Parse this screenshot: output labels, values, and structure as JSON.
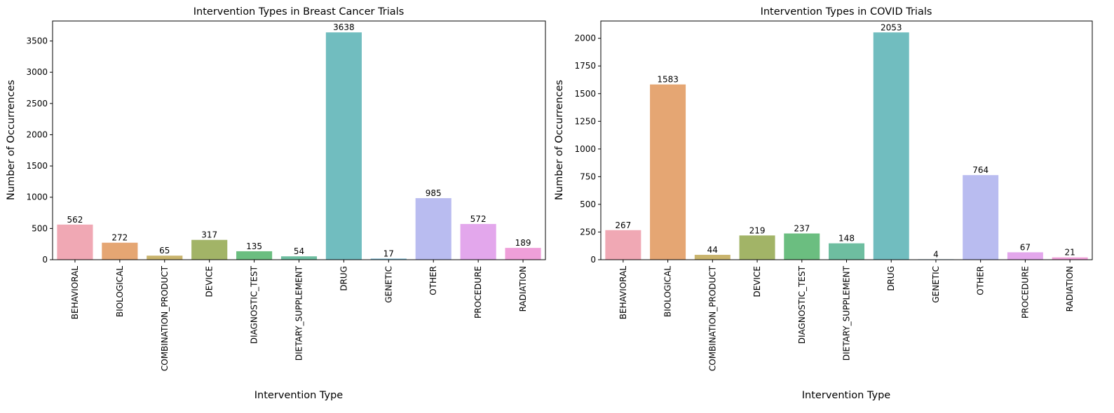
{
  "chart_data": [
    {
      "type": "bar",
      "title": "Intervention Types in Breast Cancer Trials",
      "xlabel": "Intervention Type",
      "ylabel": "Number of Occurrences",
      "ylim": [
        0,
        3820
      ],
      "yticks": [
        0,
        500,
        1000,
        1500,
        2000,
        2500,
        3000,
        3500
      ],
      "categories": [
        "BEHAVIORAL",
        "BIOLOGICAL",
        "COMBINATION_PRODUCT",
        "DEVICE",
        "DIAGNOSTIC_TEST",
        "DIETARY_SUPPLEMENT",
        "DRUG",
        "GENETIC",
        "OTHER",
        "PROCEDURE",
        "RADIATION"
      ],
      "values": [
        562,
        272,
        65,
        317,
        135,
        54,
        3638,
        17,
        985,
        572,
        189
      ],
      "colors": [
        "#f0a8b4",
        "#e5a673",
        "#c9b46d",
        "#a2b467",
        "#6bbe80",
        "#6ebea0",
        "#71bdbf",
        "#74b6d2",
        "#b9bcf0",
        "#e3a7ec",
        "#ef9fd9"
      ],
      "grid": false,
      "legend": "none"
    },
    {
      "type": "bar",
      "title": "Intervention Types in COVID Trials",
      "xlabel": "Intervention Type",
      "ylabel": "Number of Occurrences",
      "ylim": [
        0,
        2156
      ],
      "yticks": [
        0,
        250,
        500,
        750,
        1000,
        1250,
        1500,
        1750,
        2000
      ],
      "categories": [
        "BEHAVIORAL",
        "BIOLOGICAL",
        "COMBINATION_PRODUCT",
        "DEVICE",
        "DIAGNOSTIC_TEST",
        "DIETARY_SUPPLEMENT",
        "DRUG",
        "GENETIC",
        "OTHER",
        "PROCEDURE",
        "RADIATION"
      ],
      "values": [
        267,
        1583,
        44,
        219,
        237,
        148,
        2053,
        4,
        764,
        67,
        21
      ],
      "colors": [
        "#f0a8b4",
        "#e5a673",
        "#c9b46d",
        "#a2b467",
        "#6bbe80",
        "#6ebea0",
        "#71bdbf",
        "#74b6d2",
        "#b9bcf0",
        "#e3a7ec",
        "#ef9fd9"
      ],
      "grid": false,
      "legend": "none"
    }
  ]
}
